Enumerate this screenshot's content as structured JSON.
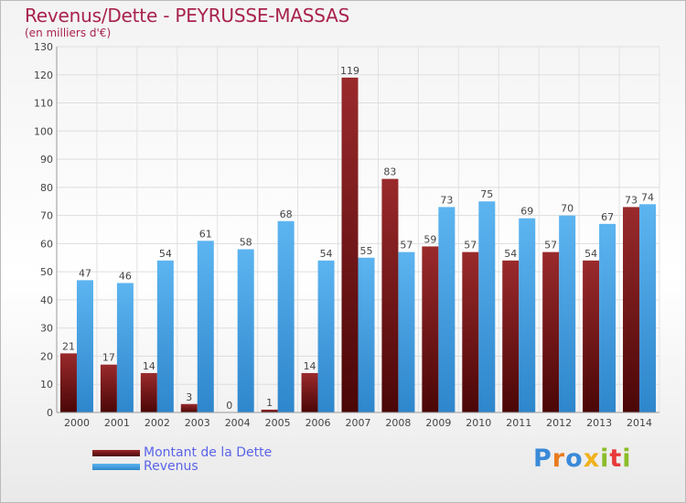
{
  "header": {
    "title": "Revenus/Dette - PEYRUSSE-MASSAS",
    "subtitle": "(en milliers d'€)"
  },
  "chart_data": {
    "type": "bar",
    "title": "Revenus/Dette - PEYRUSSE-MASSAS",
    "subtitle": "(en milliers d'€)",
    "categories": [
      "2000",
      "2001",
      "2002",
      "2003",
      "2004",
      "2005",
      "2006",
      "2007",
      "2008",
      "2009",
      "2010",
      "2011",
      "2012",
      "2013",
      "2014"
    ],
    "series": [
      {
        "name": "Montant de la Dette",
        "values": [
          21,
          17,
          14,
          3,
          0,
          1,
          14,
          119,
          83,
          59,
          57,
          54,
          57,
          54,
          73
        ],
        "color": "#7a1a1a"
      },
      {
        "name": "Revenus",
        "values": [
          47,
          46,
          54,
          61,
          58,
          68,
          54,
          55,
          57,
          73,
          75,
          69,
          70,
          67,
          74
        ],
        "color": "#4aa3e6"
      }
    ],
    "ylim": [
      0,
      130
    ],
    "yticks": [
      0,
      10,
      20,
      30,
      40,
      50,
      60,
      70,
      80,
      90,
      100,
      110,
      120,
      130
    ],
    "grid": true,
    "legend_position": "bottom-left"
  },
  "legend": [
    {
      "label": "Montant de la Dette",
      "color": "#7a1a1a"
    },
    {
      "label": "Revenus",
      "color": "#4aa3e6"
    }
  ],
  "logo": {
    "text": "Proxiti"
  }
}
